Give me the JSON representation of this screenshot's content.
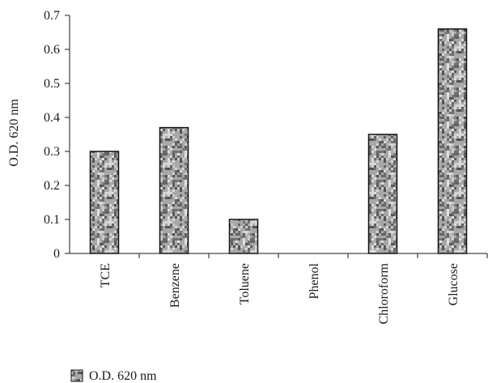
{
  "chart_data": {
    "type": "bar",
    "categories": [
      "TCE",
      "Benzene",
      "Toluene",
      "Phenol",
      "Chloroform",
      "Glucose"
    ],
    "series": [
      {
        "name": "O.D. 620 nm",
        "values": [
          0.3,
          0.37,
          0.1,
          0.0,
          0.35,
          0.66
        ]
      }
    ],
    "title": "",
    "xlabel": "",
    "ylabel": "O.D. 620 nm",
    "ylim": [
      0,
      0.7
    ],
    "yticks": [
      "0",
      "0.1",
      "0.2",
      "0.3",
      "0.4",
      "0.5",
      "0.6",
      "0.7"
    ],
    "grid": false,
    "legend": "bottom-left",
    "colors": {
      "bar_base": "#a8a8a8",
      "bar_dark": "#505050",
      "bar_light": "#e4e4e4",
      "axis": "#1a1a1a"
    }
  }
}
